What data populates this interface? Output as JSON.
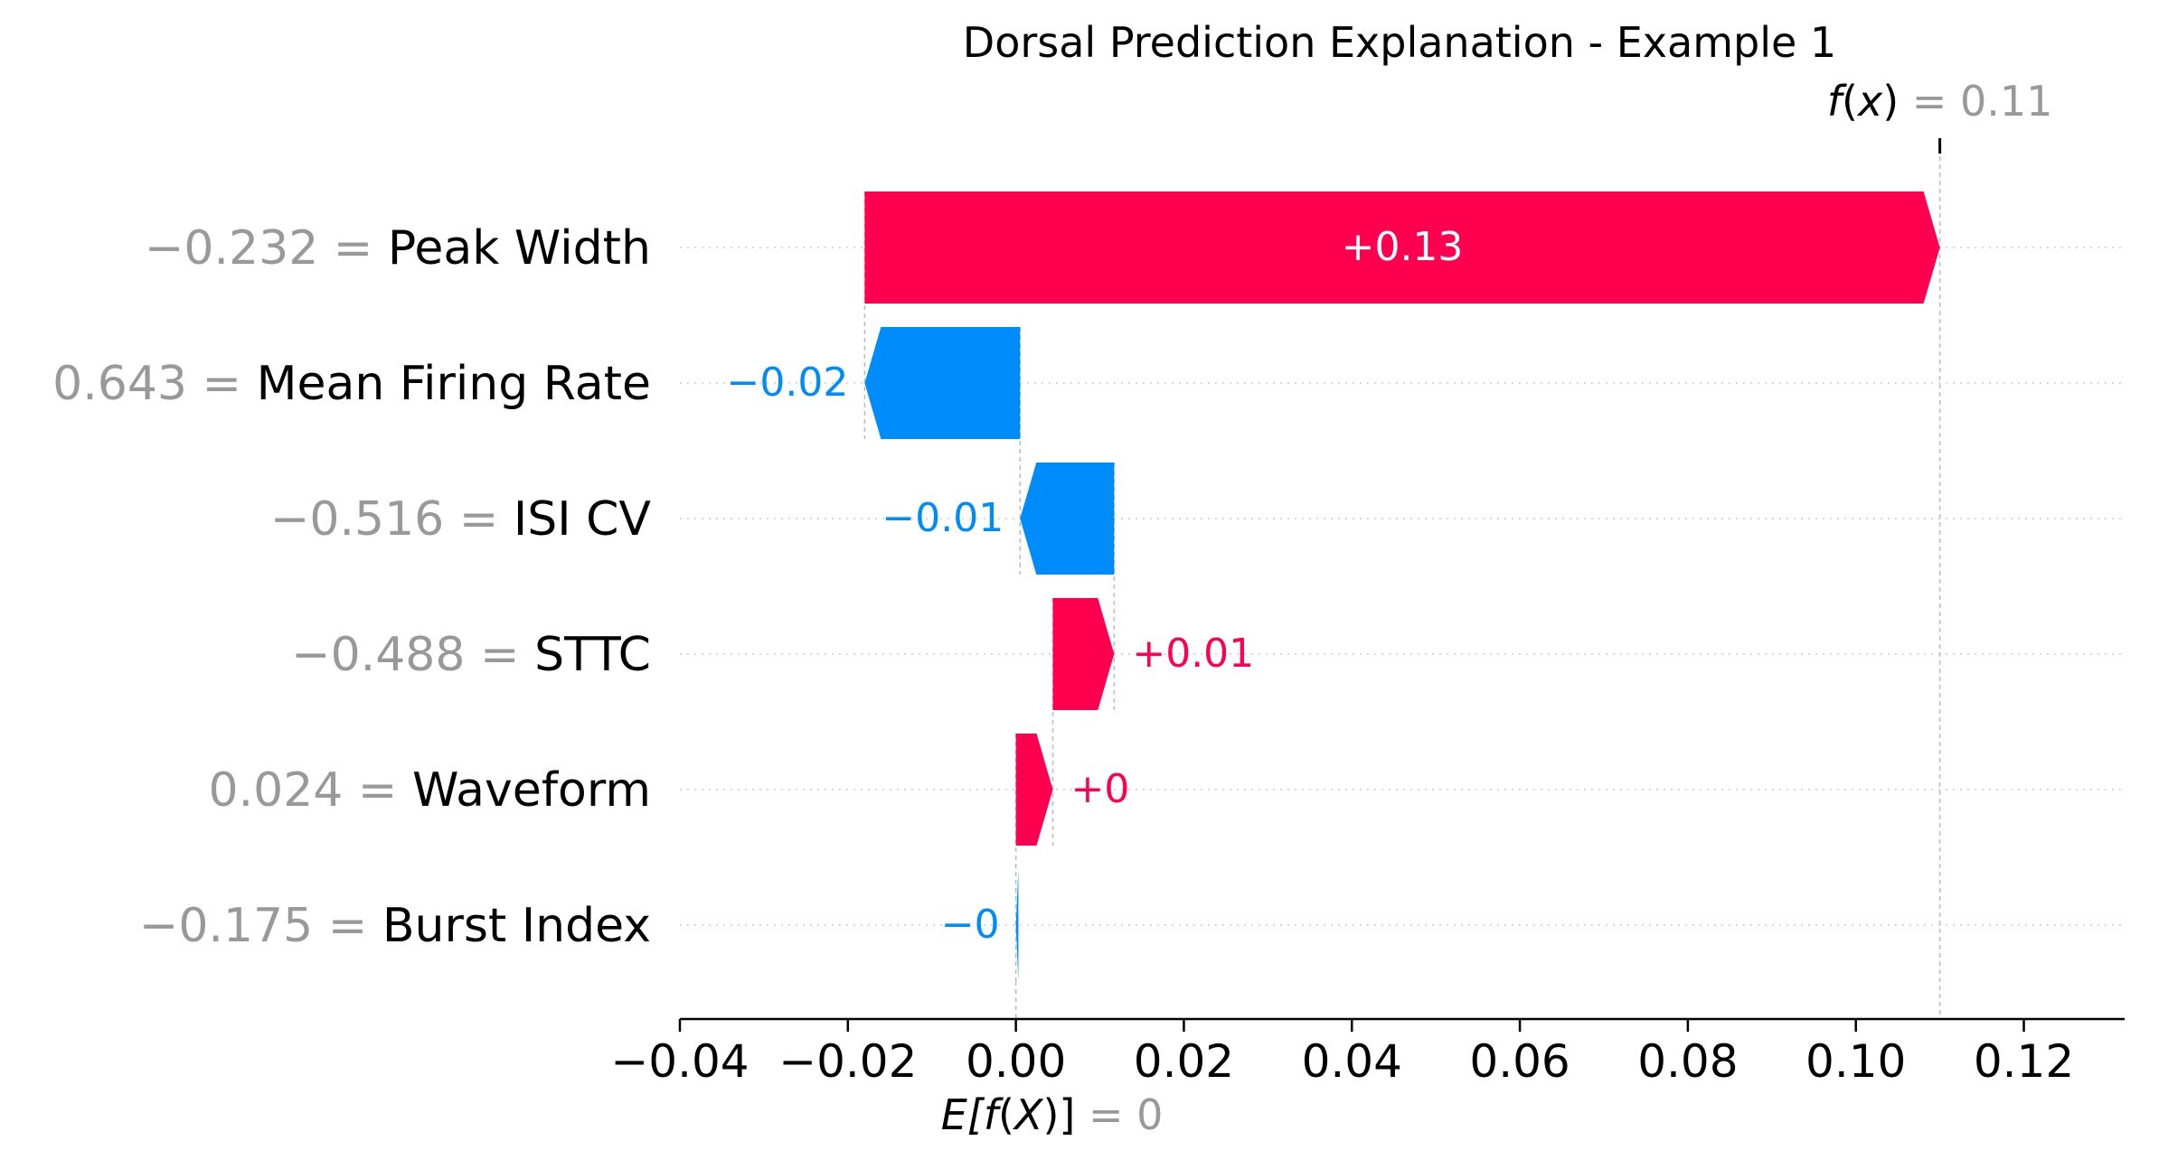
{
  "chart_data": {
    "type": "waterfall",
    "title": "Dorsal Prediction Explanation - Example 1",
    "base_value": 0,
    "output_value": 0.11,
    "base_label": {
      "prefix": "E[",
      "f_text": "f",
      "open": "(",
      "var": "X",
      "close": ")]",
      "eq_value": " = 0"
    },
    "output_label": {
      "f_text": "f",
      "open": "(",
      "var": "x",
      "close": ")",
      "eq_value": " = 0.11"
    },
    "features": [
      {
        "value_text": "−0.232",
        "name": "Peak Width",
        "contribution": 0.128,
        "label": "+0.13"
      },
      {
        "value_text": "0.643",
        "name": "Mean Firing Rate",
        "contribution": -0.0185,
        "label": "−0.02"
      },
      {
        "value_text": "−0.516",
        "name": "ISI CV",
        "contribution": -0.0112,
        "label": "−0.01"
      },
      {
        "value_text": "−0.488",
        "name": "STTC",
        "contribution": 0.0073,
        "label": "+0.01"
      },
      {
        "value_text": "0.024",
        "name": "Waveform",
        "contribution": 0.0044,
        "label": "+0"
      },
      {
        "value_text": "−0.175",
        "name": "Burst Index",
        "contribution": -0.0003,
        "label": "−0"
      }
    ],
    "x_ticks": [
      -0.04,
      -0.02,
      0.0,
      0.02,
      0.04,
      0.06,
      0.08,
      0.1,
      0.12
    ],
    "x_tick_labels": [
      "−0.04",
      "−0.02",
      "0.00",
      "0.02",
      "0.04",
      "0.06",
      "0.08",
      "0.10",
      "0.12"
    ],
    "xlim": [
      -0.04,
      0.132
    ],
    "grid": false,
    "colors": {
      "positive": "#ff0051",
      "negative": "#008bfb",
      "value_text": "#999999",
      "name_text": "#000000",
      "axis": "#000000",
      "guide": "#cccccc",
      "expected_line": "#bbbbbb",
      "bar_label_inside": "#ffffff"
    }
  }
}
